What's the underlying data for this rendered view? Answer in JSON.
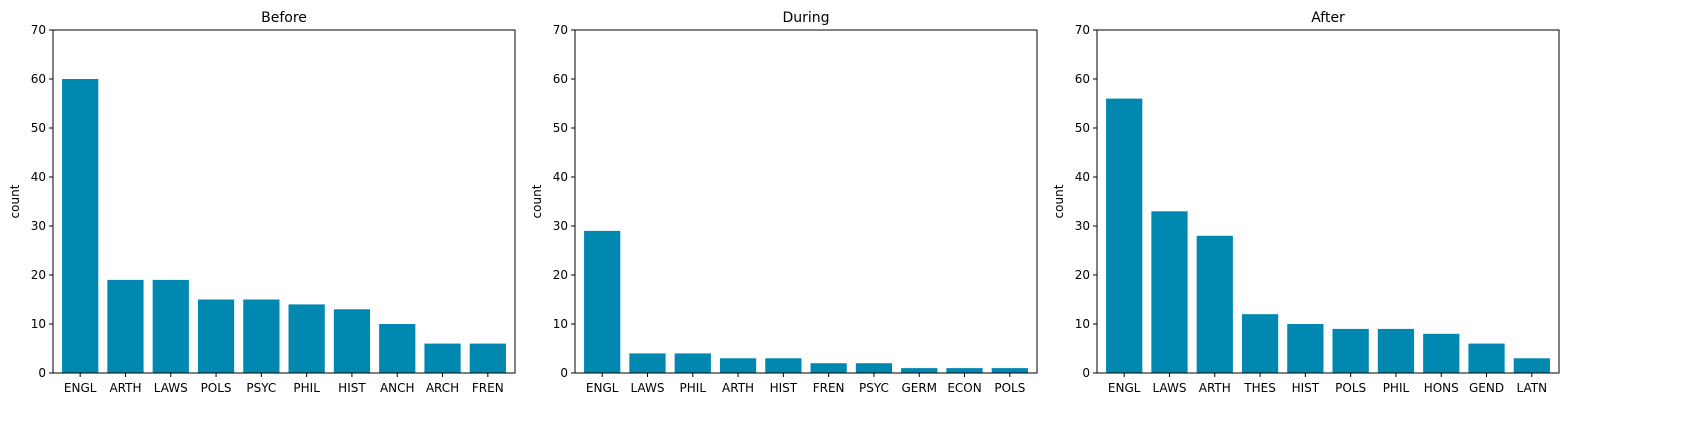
{
  "chart_data": [
    {
      "type": "bar",
      "title": "Before",
      "ylabel": "count",
      "xlabel": "",
      "ylim": [
        0,
        70
      ],
      "yticks": [
        0,
        10,
        20,
        30,
        40,
        50,
        60,
        70
      ],
      "categories": [
        "ENGL",
        "ARTH",
        "LAWS",
        "POLS",
        "PSYC",
        "PHIL",
        "HIST",
        "ANCH",
        "ARCH",
        "FREN"
      ],
      "values": [
        60,
        19,
        19,
        15,
        15,
        14,
        13,
        10,
        6,
        6
      ],
      "bar_color": "#0088B0",
      "grid": false
    },
    {
      "type": "bar",
      "title": "During",
      "ylabel": "count",
      "xlabel": "",
      "ylim": [
        0,
        70
      ],
      "yticks": [
        0,
        10,
        20,
        30,
        40,
        50,
        60,
        70
      ],
      "categories": [
        "ENGL",
        "LAWS",
        "PHIL",
        "ARTH",
        "HIST",
        "FREN",
        "PSYC",
        "GERM",
        "ECON",
        "POLS"
      ],
      "values": [
        29,
        4,
        4,
        3,
        3,
        2,
        2,
        1,
        1,
        1
      ],
      "bar_color": "#0088B0",
      "grid": false
    },
    {
      "type": "bar",
      "title": "After",
      "ylabel": "count",
      "xlabel": "",
      "ylim": [
        0,
        70
      ],
      "yticks": [
        0,
        10,
        20,
        30,
        40,
        50,
        60,
        70
      ],
      "categories": [
        "ENGL",
        "LAWS",
        "ARTH",
        "THES",
        "HIST",
        "POLS",
        "PHIL",
        "HONS",
        "GEND",
        "LATN"
      ],
      "values": [
        56,
        33,
        28,
        12,
        10,
        9,
        9,
        8,
        6,
        3
      ],
      "bar_color": "#0088B0",
      "grid": false
    }
  ]
}
